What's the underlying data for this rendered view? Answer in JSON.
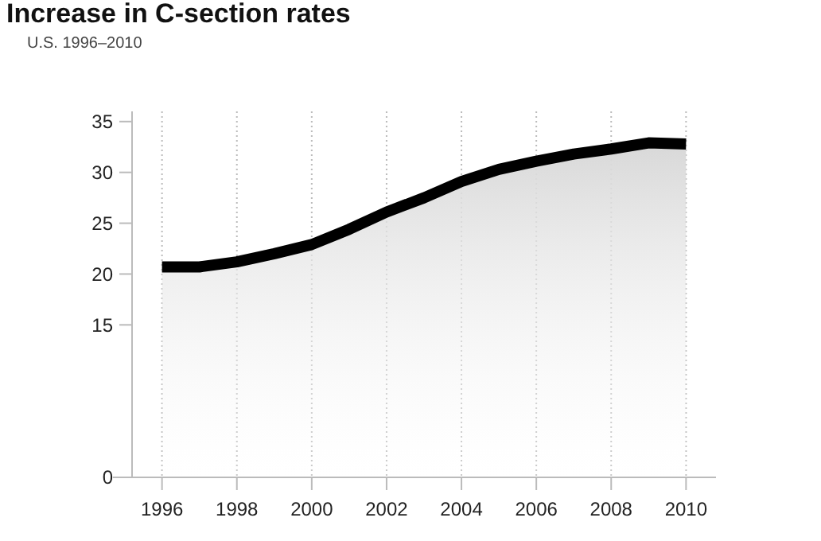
{
  "chart_data": {
    "type": "area",
    "title": "Increase in C-section rates",
    "subtitle": "U.S. 1996–2010",
    "x": [
      1996,
      1997,
      1998,
      1999,
      2000,
      2001,
      2002,
      2003,
      2004,
      2005,
      2006,
      2007,
      2008,
      2009,
      2010
    ],
    "series": [
      {
        "color": "#000000",
        "values": [
          20.7,
          20.7,
          21.2,
          22.0,
          22.9,
          24.4,
          26.1,
          27.5,
          29.1,
          30.3,
          31.1,
          31.8,
          32.3,
          32.9,
          32.8
        ]
      }
    ],
    "xlim": [
      1995.2,
      2010.8
    ],
    "xticks": [
      1996,
      1998,
      2000,
      2002,
      2004,
      2006,
      2008,
      2010
    ],
    "ylim": [
      0,
      36
    ],
    "yticks": [
      0,
      15,
      20,
      25,
      30,
      35
    ],
    "grid": "x"
  }
}
